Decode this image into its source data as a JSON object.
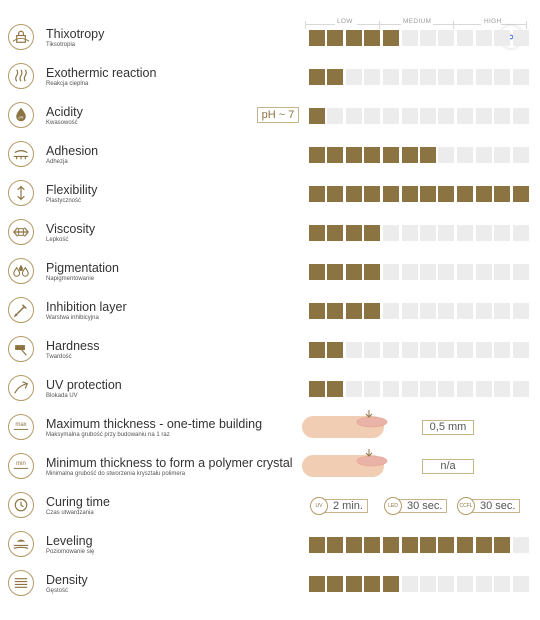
{
  "scale": {
    "low": "LOW",
    "medium": "MEDIUM",
    "high": "HIGH",
    "total_segments": 12
  },
  "colors": {
    "filled": "#8c7342",
    "empty": "#ececec",
    "accent_border": "#c8b48c"
  },
  "scan_button_icon": "scan-icon",
  "properties": [
    {
      "id": "thixotropy",
      "icon": "lock-icon",
      "title": "Thixotropy",
      "subtitle": "Tiksotropia",
      "level": 5
    },
    {
      "id": "exothermic",
      "icon": "heat-waves-icon",
      "title": "Exothermic reaction",
      "subtitle": "Reakcja cieplna",
      "level": 2
    },
    {
      "id": "acidity",
      "icon": "ph-drop-icon",
      "title": "Acidity",
      "subtitle": "Kwasowość",
      "level": 1,
      "badge": "pH ~ 7"
    },
    {
      "id": "adhesion",
      "icon": "adhesion-icon",
      "title": "Adhesion",
      "subtitle": "Adhezja",
      "level": 7
    },
    {
      "id": "flexibility",
      "icon": "flexibility-icon",
      "title": "Flexibility",
      "subtitle": "Plastyczność",
      "level": 12
    },
    {
      "id": "viscosity",
      "icon": "viscosity-icon",
      "title": "Viscosity",
      "subtitle": "Lepkość",
      "level": 4
    },
    {
      "id": "pigmentation",
      "icon": "drops-icon",
      "title": "Pigmentation",
      "subtitle": "Napigmentowanie",
      "level": 4
    },
    {
      "id": "inhibition",
      "icon": "brush-icon",
      "title": "Inhibition layer",
      "subtitle": "Warstwa inhibicyjna",
      "level": 4
    },
    {
      "id": "hardness",
      "icon": "hammer-icon",
      "title": "Hardness",
      "subtitle": "Twardość",
      "level": 2
    },
    {
      "id": "uv",
      "icon": "uv-icon",
      "title": "UV protection",
      "subtitle": "Blokada UV",
      "level": 2
    }
  ],
  "thickness": [
    {
      "id": "max-thickness",
      "icon": "max-icon",
      "icon_text": "max",
      "title": "Maximum thickness - one-time building",
      "subtitle": "Maksymalna grubość przy budowaniu na 1 raz",
      "value": "0,5 mm"
    },
    {
      "id": "min-thickness",
      "icon": "min-icon",
      "icon_text": "min",
      "title": "Minimum thickness to form a polymer crystal",
      "subtitle": "Minimalna grubość do stworzenia kryształu polimera",
      "value": "n/a"
    }
  ],
  "curing": {
    "icon": "clock-icon",
    "title": "Curing time",
    "subtitle": "Czas utwardzania",
    "lamps": [
      {
        "badge": "UV",
        "value": "2 min."
      },
      {
        "badge": "LED",
        "value": "30 sec."
      },
      {
        "badge": "CCFL",
        "value": "30 sec."
      }
    ]
  },
  "tail": [
    {
      "id": "leveling",
      "icon": "leveling-icon",
      "title": "Leveling",
      "subtitle": "Poziomowanie się",
      "level": 11
    },
    {
      "id": "density",
      "icon": "density-icon",
      "title": "Density",
      "subtitle": "Gęstość",
      "level": 5
    }
  ]
}
